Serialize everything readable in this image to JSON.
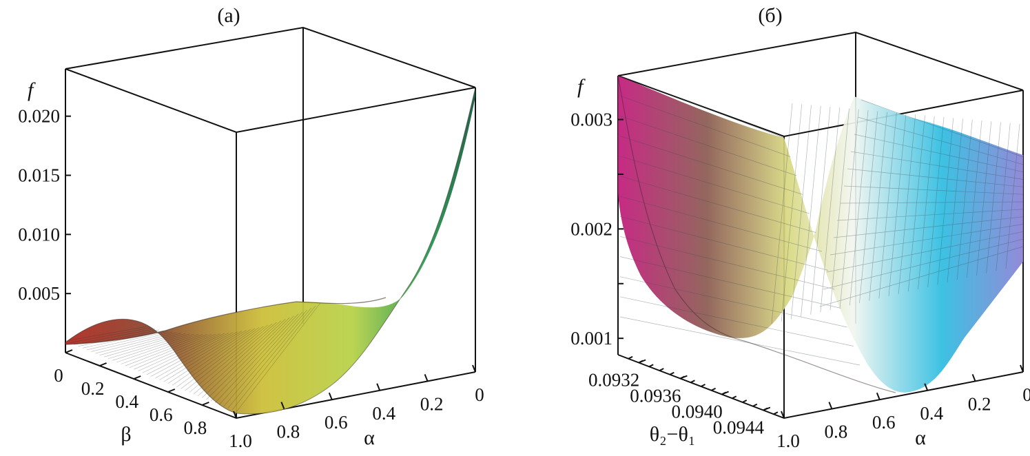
{
  "chart_data": [
    {
      "type": "surface3d",
      "panel_label": "(a)",
      "zlabel": "f",
      "xlabel": "α",
      "ylabel": "β",
      "z_ticks": [
        "0.005",
        "0.010",
        "0.015",
        "0.020"
      ],
      "x_ticks": [
        "1.0",
        "0.8",
        "0.6",
        "0.4",
        "0.2",
        "0"
      ],
      "y_ticks": [
        "0",
        "0.2",
        "0.4",
        "0.6",
        "0.8"
      ],
      "zlim": [
        0,
        0.024
      ],
      "xlim": [
        0,
        1
      ],
      "ylim": [
        0,
        1
      ],
      "colors": [
        "#c0392b",
        "#a0522d",
        "#d4c53a",
        "#9ccc3a",
        "#1a8a4a"
      ]
    },
    {
      "type": "surface3d",
      "panel_label": "(б)",
      "zlabel": "f",
      "xlabel": "α",
      "ylabel": "θ₂−θ₁",
      "z_ticks": [
        "0.001",
        "0.002",
        "0.003"
      ],
      "x_ticks": [
        "1.0",
        "0.8",
        "0.6",
        "0.4",
        "0.2",
        "0"
      ],
      "y_ticks": [
        "0.0932",
        "0.0936",
        "0.0940",
        "0.0944"
      ],
      "zlim": [
        0.00085,
        0.0034
      ],
      "xlim": [
        0,
        1
      ],
      "ylim": [
        0.093,
        0.0946
      ],
      "colors": [
        "#c2187a",
        "#7a5a3a",
        "#e8e070",
        "#bfe8f0",
        "#18b0d8",
        "#7a78d0"
      ]
    }
  ]
}
